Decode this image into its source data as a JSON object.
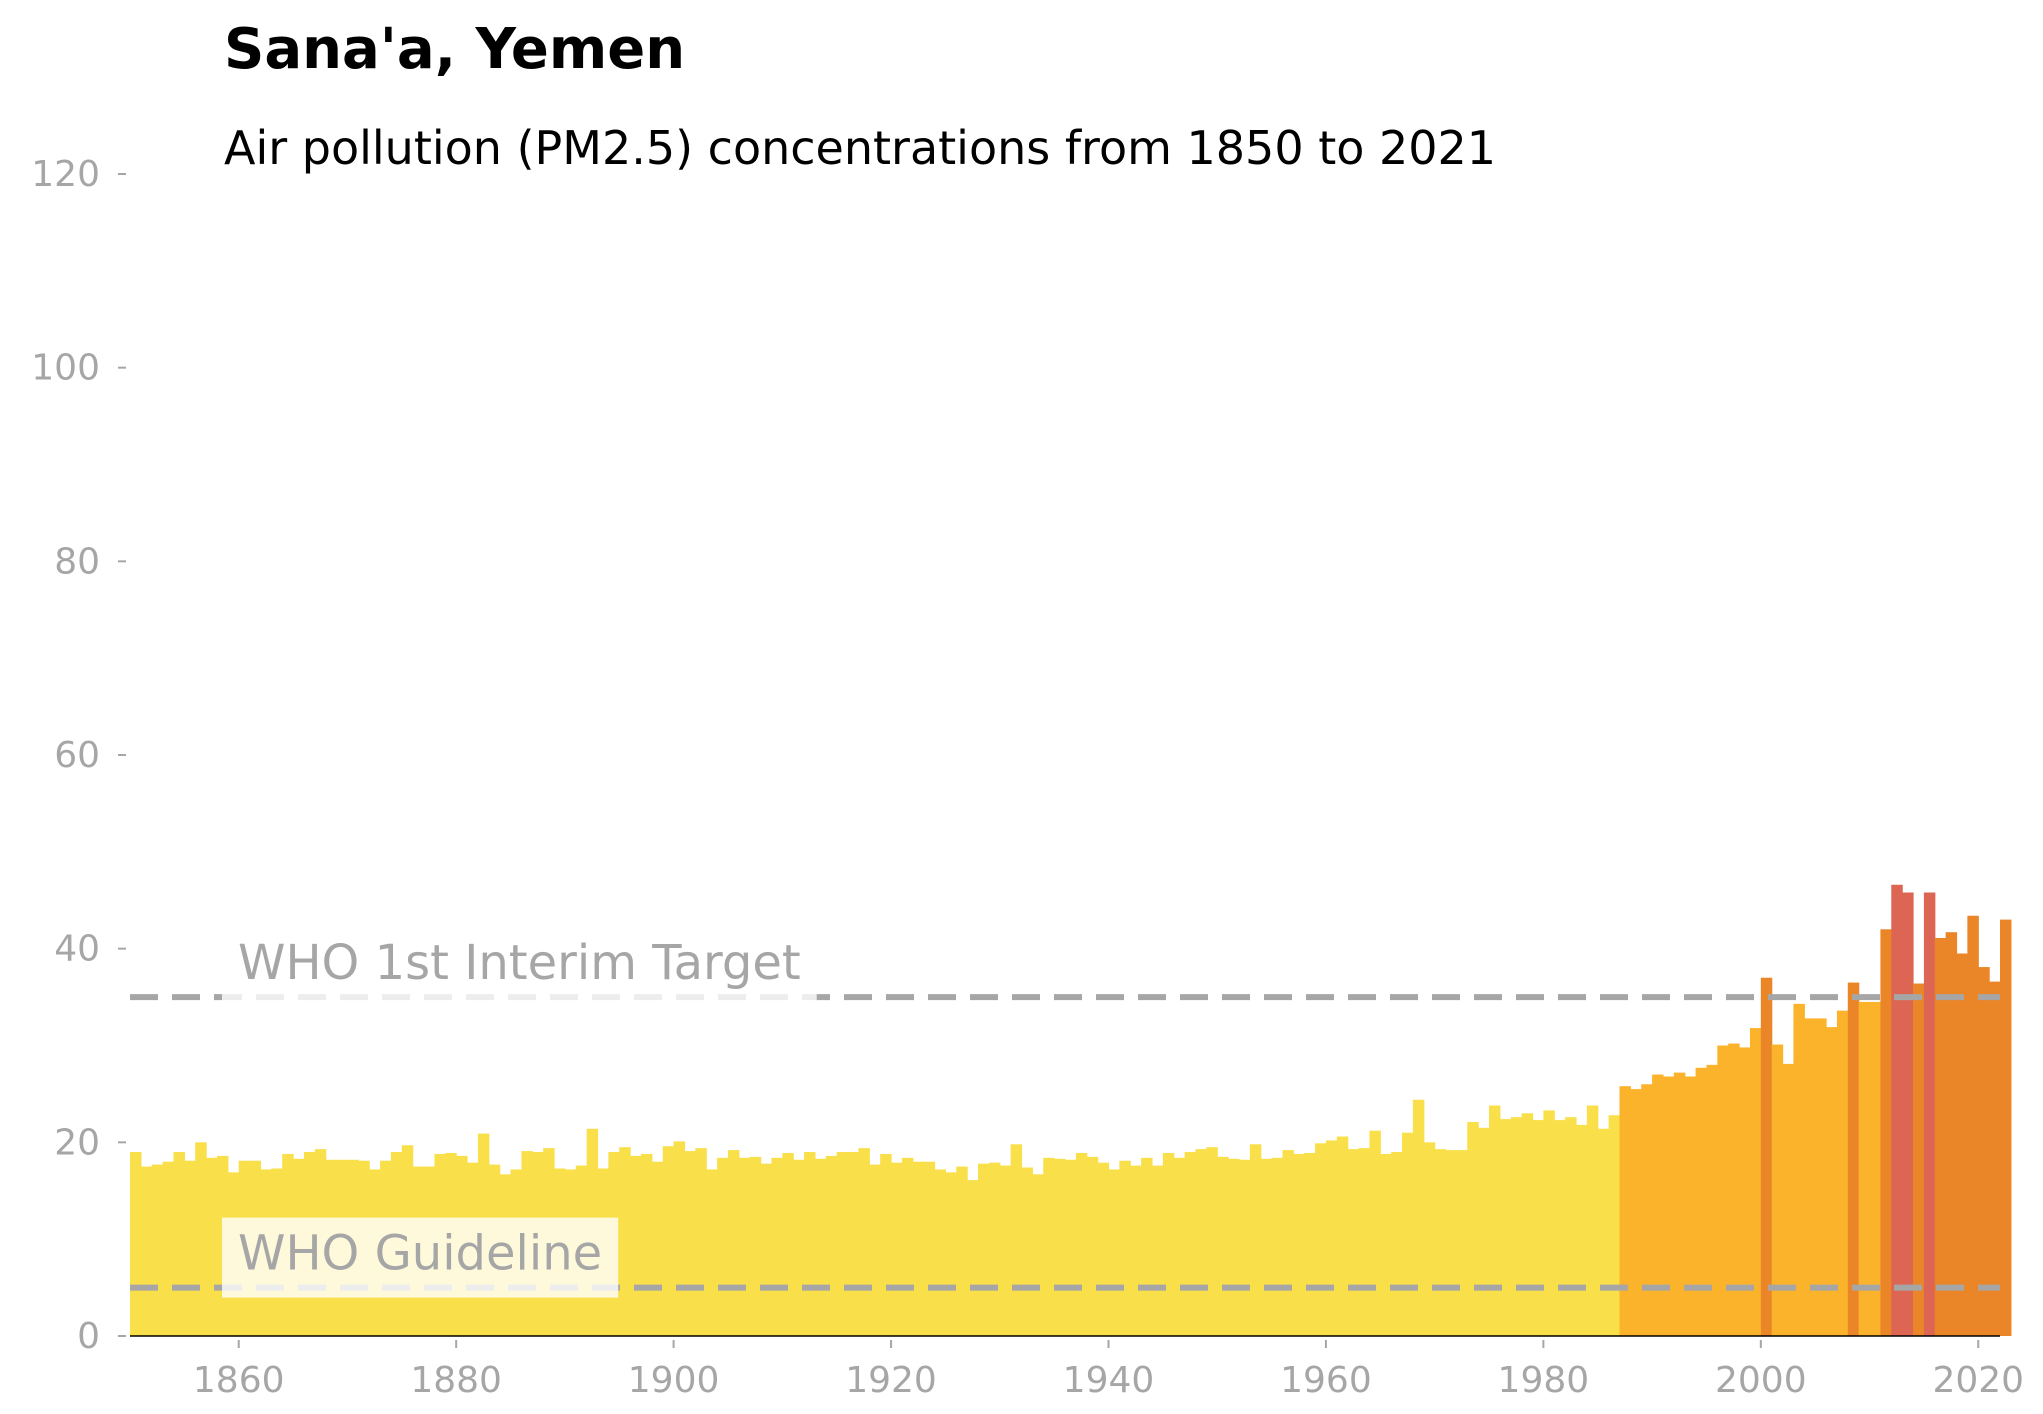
{
  "chart_data": {
    "type": "bar",
    "title": "Sana'a, Yemen",
    "subtitle": "Air pollution (PM2.5) concentrations from 1850 to 2021",
    "xlabel": "",
    "ylabel": "",
    "xlim": [
      1850,
      2022
    ],
    "ylim": [
      0,
      120
    ],
    "grid": false,
    "legend": "none",
    "x_ticks": [
      1860,
      1880,
      1900,
      1920,
      1940,
      1960,
      1980,
      2000,
      2020
    ],
    "y_ticks": [
      0,
      20,
      40,
      60,
      80,
      100,
      120
    ],
    "reference_lines": [
      {
        "label": "WHO 1st Interim Target",
        "value": 35
      },
      {
        "label": "WHO Guideline",
        "value": 5
      }
    ],
    "colors": {
      "low": "#f9e04b",
      "moderate": "#fcb32c",
      "elevated": "#ea8628",
      "high": "#dc6653",
      "reference": "#a6a6a6",
      "axis": "#000000"
    },
    "start_year": 1850,
    "values": [
      19.0,
      17.5,
      17.7,
      18.0,
      19.0,
      18.1,
      20.0,
      18.4,
      18.6,
      16.9,
      18.1,
      18.1,
      17.2,
      17.3,
      18.8,
      18.3,
      19.0,
      19.3,
      18.2,
      18.2,
      18.2,
      18.1,
      17.2,
      18.1,
      19.0,
      19.7,
      17.5,
      17.5,
      18.8,
      18.9,
      18.6,
      17.9,
      20.9,
      17.7,
      16.7,
      17.2,
      19.1,
      19.0,
      19.4,
      17.3,
      17.2,
      17.6,
      21.4,
      17.3,
      19.0,
      19.5,
      18.6,
      18.8,
      18.0,
      19.6,
      20.1,
      19.1,
      19.4,
      17.2,
      18.4,
      19.2,
      18.4,
      18.5,
      17.8,
      18.4,
      18.9,
      18.2,
      19.0,
      18.3,
      18.6,
      19.0,
      19.0,
      19.4,
      17.7,
      18.8,
      17.9,
      18.4,
      18.0,
      18.0,
      17.2,
      16.9,
      17.5,
      16.1,
      17.8,
      17.9,
      17.6,
      19.8,
      17.4,
      16.7,
      18.4,
      18.3,
      18.2,
      18.9,
      18.5,
      17.9,
      17.2,
      18.1,
      17.6,
      18.4,
      17.6,
      18.9,
      18.4,
      19.0,
      19.3,
      19.5,
      18.5,
      18.3,
      18.2,
      19.8,
      18.3,
      18.4,
      19.2,
      18.8,
      18.9,
      19.9,
      20.2,
      20.6,
      19.3,
      19.4,
      21.2,
      18.8,
      19.0,
      21.0,
      24.4,
      20.0,
      19.3,
      19.2,
      19.2,
      22.1,
      21.5,
      23.8,
      22.4,
      22.6,
      23.0,
      22.3,
      23.3,
      22.3,
      22.6,
      21.8,
      23.8,
      21.4,
      22.8,
      25.8,
      25.5,
      26.0,
      27.0,
      26.8,
      27.2,
      26.8,
      27.7,
      28.0,
      30.0,
      30.2,
      29.8,
      31.8,
      37.0,
      30.1,
      28.1,
      34.3,
      32.8,
      32.8,
      31.9,
      33.6,
      36.5,
      34.5,
      34.5,
      42.0,
      46.6,
      45.8,
      36.4,
      45.8,
      41.1,
      41.7,
      39.5,
      43.4,
      38.1,
      36.6,
      43.0
    ]
  }
}
